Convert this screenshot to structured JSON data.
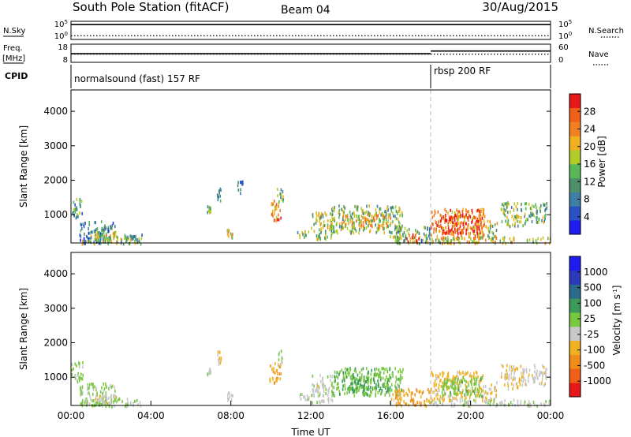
{
  "header": {
    "station": "South Pole Station (fitACF)",
    "beam": "Beam 04",
    "date": "30/Aug/2015"
  },
  "sky_panel": {
    "left_label": "N.Sky",
    "left_ticks": [
      "10^5",
      "10^0"
    ],
    "right_ticks": [
      "10^5",
      "10^0"
    ],
    "right_label": "N.Search",
    "sky_level": 0.82,
    "search_level": 0.2
  },
  "freq_panel": {
    "left_label_1": "Freq.",
    "left_label_2": "[MHz]",
    "left_ticks": [
      "18",
      "8"
    ],
    "right_ticks": [
      "60",
      "0"
    ],
    "right_label": "Nave",
    "freq_level_1": 0.3,
    "freq_level_2": 0.45,
    "freq_switch_hour": 18.0,
    "nave_level": 0.45
  },
  "cpid": {
    "label": "CPID",
    "segments": [
      {
        "text": "normalsound (fast) 157 RF",
        "start_hour": 0
      },
      {
        "text": "rbsp 200 RF",
        "start_hour": 18.0
      }
    ]
  },
  "chart_data": [
    {
      "type": "heatmap",
      "panel": "power",
      "ylabel": "Slant Range [km]",
      "ylim": [
        180,
        4620
      ],
      "y_ticks": [
        "1000",
        "2000",
        "3000",
        "4000"
      ],
      "y_tick_values": [
        1000,
        2000,
        3000,
        4000
      ],
      "xlim": [
        0,
        24
      ],
      "colorbar": {
        "label": "Power [dB]",
        "ticks": [
          "4",
          "8",
          "12",
          "16",
          "20",
          "24",
          "28"
        ],
        "range": [
          0,
          30
        ],
        "colors": [
          "#1c1cf0",
          "#2a52c4",
          "#3d7fa6",
          "#4c8f6a",
          "#58b858",
          "#b4cc2a",
          "#f0b020",
          "#f08020",
          "#f06018",
          "#e81818"
        ]
      },
      "patches": [
        {
          "x": [
            0.0,
            0.6
          ],
          "y": [
            900,
            1500
          ],
          "v": 10
        },
        {
          "x": [
            0.4,
            2.2
          ],
          "y": [
            200,
            850
          ],
          "v": 8
        },
        {
          "x": [
            1.2,
            2.3
          ],
          "y": [
            250,
            550
          ],
          "v": 18
        },
        {
          "x": [
            0.5,
            3.5
          ],
          "y": [
            180,
            420
          ],
          "v": 14
        },
        {
          "x": [
            2.6,
            3.6
          ],
          "y": [
            300,
            500
          ],
          "v": 10
        },
        {
          "x": [
            6.8,
            7.0
          ],
          "y": [
            1100,
            1300
          ],
          "v": 12
        },
        {
          "x": [
            7.3,
            7.5
          ],
          "y": [
            1400,
            1800
          ],
          "v": 10
        },
        {
          "x": [
            8.3,
            8.6
          ],
          "y": [
            1600,
            2000
          ],
          "v": 6
        },
        {
          "x": [
            7.8,
            8.1
          ],
          "y": [
            350,
            600
          ],
          "v": 20
        },
        {
          "x": [
            9.9,
            10.5
          ],
          "y": [
            850,
            1450
          ],
          "v": 24
        },
        {
          "x": [
            10.3,
            10.6
          ],
          "y": [
            1400,
            1800
          ],
          "v": 12
        },
        {
          "x": [
            11.3,
            11.9
          ],
          "y": [
            380,
            560
          ],
          "v": 12
        },
        {
          "x": [
            12.0,
            13.1
          ],
          "y": [
            300,
            1100
          ],
          "v": 16
        },
        {
          "x": [
            13.0,
            16.6
          ],
          "y": [
            500,
            1300
          ],
          "v": 14
        },
        {
          "x": [
            13.5,
            16.0
          ],
          "y": [
            650,
            1050
          ],
          "v": 20
        },
        {
          "x": [
            15.9,
            16.5
          ],
          "y": [
            280,
            620
          ],
          "v": 16
        },
        {
          "x": [
            16.2,
            18.0
          ],
          "y": [
            200,
            700
          ],
          "v": 12
        },
        {
          "x": [
            16.7,
            17.4
          ],
          "y": [
            220,
            480
          ],
          "v": 26
        },
        {
          "x": [
            18.0,
            20.7
          ],
          "y": [
            350,
            1200
          ],
          "v": 22
        },
        {
          "x": [
            18.5,
            20.6
          ],
          "y": [
            480,
            1050
          ],
          "v": 28
        },
        {
          "x": [
            20.7,
            21.3
          ],
          "y": [
            300,
            900
          ],
          "v": 16
        },
        {
          "x": [
            21.5,
            22.7
          ],
          "y": [
            700,
            1400
          ],
          "v": 14
        },
        {
          "x": [
            22.7,
            23.8
          ],
          "y": [
            800,
            1400
          ],
          "v": 12
        },
        {
          "x": [
            18.0,
            24.0
          ],
          "y": [
            200,
            380
          ],
          "v": 18
        }
      ]
    },
    {
      "type": "heatmap",
      "panel": "velocity",
      "ylabel": "Slant Range [km]",
      "xlabel": "Time UT",
      "ylim": [
        180,
        4620
      ],
      "y_ticks": [
        "1000",
        "2000",
        "3000",
        "4000"
      ],
      "y_tick_values": [
        1000,
        2000,
        3000,
        4000
      ],
      "xlim": [
        0,
        24
      ],
      "x_ticks": [
        "00:00",
        "04:00",
        "08:00",
        "12:00",
        "16:00",
        "20:00",
        "00:00"
      ],
      "x_tick_values": [
        0,
        4,
        8,
        12,
        16,
        20,
        24
      ],
      "colorbar": {
        "label": "Velocity [m s^-1]",
        "ticks": [
          "1000",
          "500",
          "100",
          "25",
          "-25",
          "-100",
          "-500",
          "-1000"
        ],
        "range": [
          -1200,
          1200
        ],
        "colors": [
          "#e81818",
          "#f06018",
          "#f08c18",
          "#f0b020",
          "#c8c8c8",
          "#78c840",
          "#3c9a5a",
          "#2a6a8a",
          "#2a3ab8",
          "#1c1cf0"
        ]
      },
      "patches": [
        {
          "x": [
            0.0,
            0.6
          ],
          "y": [
            900,
            1500
          ],
          "v": 60
        },
        {
          "x": [
            0.4,
            2.2
          ],
          "y": [
            200,
            850
          ],
          "v": 80
        },
        {
          "x": [
            1.2,
            2.3
          ],
          "y": [
            250,
            550
          ],
          "v": -150
        },
        {
          "x": [
            0.5,
            3.5
          ],
          "y": [
            180,
            420
          ],
          "v": 0
        },
        {
          "x": [
            6.8,
            7.0
          ],
          "y": [
            1100,
            1300
          ],
          "v": -80
        },
        {
          "x": [
            7.3,
            7.5
          ],
          "y": [
            1400,
            1800
          ],
          "v": -300
        },
        {
          "x": [
            7.8,
            8.1
          ],
          "y": [
            350,
            600
          ],
          "v": -120
        },
        {
          "x": [
            9.9,
            10.5
          ],
          "y": [
            850,
            1450
          ],
          "v": -400
        },
        {
          "x": [
            10.3,
            10.6
          ],
          "y": [
            1400,
            1800
          ],
          "v": 60
        },
        {
          "x": [
            11.3,
            11.9
          ],
          "y": [
            380,
            560
          ],
          "v": -60
        },
        {
          "x": [
            12.0,
            13.1
          ],
          "y": [
            300,
            1100
          ],
          "v": -90
        },
        {
          "x": [
            13.0,
            16.6
          ],
          "y": [
            500,
            1300
          ],
          "v": 150
        },
        {
          "x": [
            13.5,
            16.0
          ],
          "y": [
            650,
            1050
          ],
          "v": 300
        },
        {
          "x": [
            15.9,
            16.5
          ],
          "y": [
            280,
            620
          ],
          "v": -200
        },
        {
          "x": [
            16.2,
            18.0
          ],
          "y": [
            200,
            700
          ],
          "v": -500
        },
        {
          "x": [
            18.0,
            20.7
          ],
          "y": [
            350,
            1200
          ],
          "v": -300
        },
        {
          "x": [
            18.5,
            20.6
          ],
          "y": [
            480,
            1050
          ],
          "v": 150
        },
        {
          "x": [
            20.7,
            21.3
          ],
          "y": [
            300,
            900
          ],
          "v": -250
        },
        {
          "x": [
            21.5,
            22.7
          ],
          "y": [
            700,
            1400
          ],
          "v": -200
        },
        {
          "x": [
            22.7,
            23.8
          ],
          "y": [
            800,
            1400
          ],
          "v": -150
        },
        {
          "x": [
            18.0,
            24.0
          ],
          "y": [
            200,
            380
          ],
          "v": -60
        }
      ]
    }
  ]
}
